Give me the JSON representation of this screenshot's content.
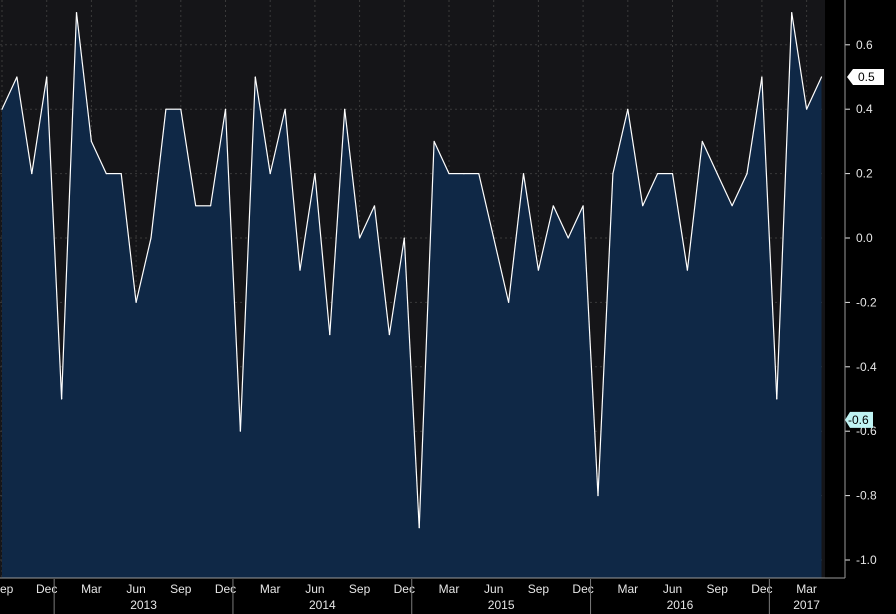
{
  "chart_data": {
    "type": "area",
    "x": [
      "2012-09",
      "2012-10",
      "2012-11",
      "2012-12",
      "2013-01",
      "2013-02",
      "2013-03",
      "2013-04",
      "2013-05",
      "2013-06",
      "2013-07",
      "2013-08",
      "2013-09",
      "2013-10",
      "2013-11",
      "2013-12",
      "2014-01",
      "2014-02",
      "2014-03",
      "2014-04",
      "2014-05",
      "2014-06",
      "2014-07",
      "2014-08",
      "2014-09",
      "2014-10",
      "2014-11",
      "2014-12",
      "2015-01",
      "2015-02",
      "2015-03",
      "2015-04",
      "2015-05",
      "2015-06",
      "2015-07",
      "2015-08",
      "2015-09",
      "2015-10",
      "2015-11",
      "2015-12",
      "2016-01",
      "2016-02",
      "2016-03",
      "2016-04",
      "2016-05",
      "2016-06",
      "2016-07",
      "2016-08",
      "2016-09",
      "2016-10",
      "2016-11",
      "2016-12",
      "2017-01",
      "2017-02",
      "2017-03",
      "2017-04"
    ],
    "series": [
      {
        "values": [
          0.4,
          0.5,
          0.2,
          0.5,
          -0.5,
          0.7,
          0.3,
          0.2,
          0.2,
          -0.2,
          0.0,
          0.4,
          0.4,
          0.1,
          0.1,
          0.4,
          -0.6,
          0.5,
          0.2,
          0.4,
          -0.1,
          0.2,
          -0.3,
          0.4,
          0.0,
          0.1,
          -0.3,
          0.0,
          -0.9,
          0.3,
          0.2,
          0.2,
          0.2,
          0.0,
          -0.2,
          0.2,
          -0.1,
          0.1,
          0.0,
          0.1,
          -0.8,
          0.2,
          0.4,
          0.1,
          0.2,
          0.2,
          -0.1,
          0.3,
          0.2,
          0.1,
          0.2,
          0.5,
          -0.5,
          0.7,
          0.4,
          0.5
        ]
      }
    ],
    "month_labels": [
      "ep",
      "Dec",
      "Mar",
      "Jun",
      "Sep",
      "Dec",
      "Mar",
      "Jun",
      "Sep",
      "Dec",
      "Mar",
      "Jun",
      "Sep",
      "Dec",
      "Mar",
      "Jun",
      "Sep",
      "Dec",
      "Mar"
    ],
    "year_labels": [
      "2013",
      "2014",
      "2015",
      "2016",
      "2017"
    ],
    "y_ticks": [
      "0.6",
      "0.4",
      "0.2",
      "0.0",
      "-0.2",
      "-0.4",
      "-0.6",
      "-0.8",
      "-1.0"
    ],
    "ylim": [
      -1.05,
      0.72
    ],
    "last_value_label": "0.5",
    "marker_label": "-0.6",
    "grid": true,
    "colors": {
      "background": "#000000",
      "plot_background": "#151518",
      "area_fill": "#0f2846",
      "line": "#ffffff",
      "marker_fill": "#bff3f3",
      "grid": "#3a3a3a"
    }
  }
}
